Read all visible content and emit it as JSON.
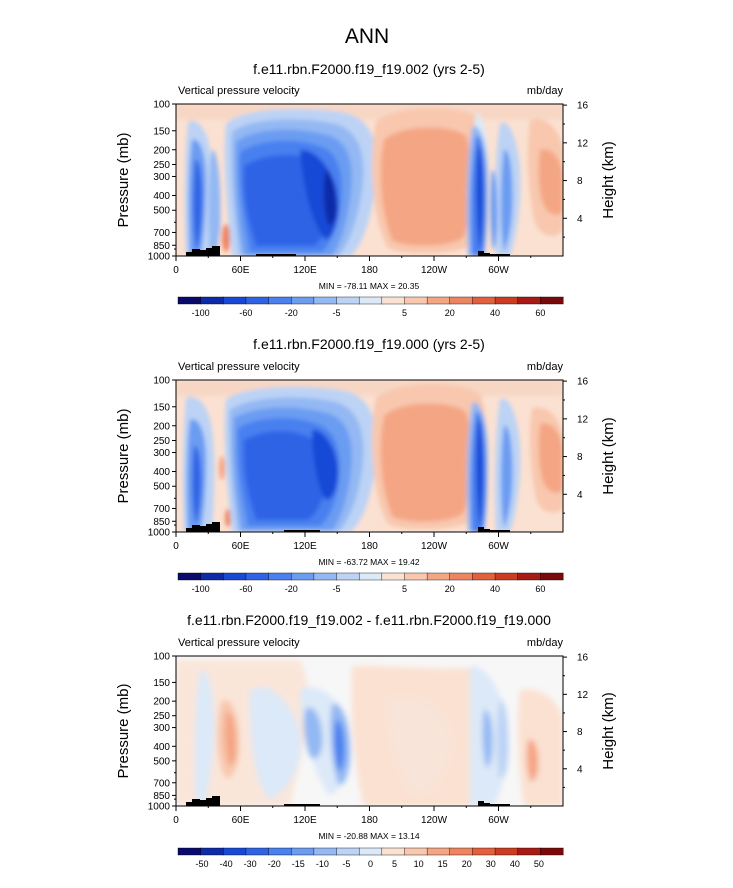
{
  "figure": {
    "title": "ANN"
  },
  "chart_data": [
    {
      "type": "contour",
      "title": "f.e11.rbn.F2000.f19_f19.002 (yrs 2-5)",
      "left_label": "Vertical pressure velocity",
      "units": "mb/day",
      "ylabel": "Pressure (mb)",
      "y2label": "Height (km)",
      "yticks": [
        "100",
        "150",
        "200",
        "250",
        "300",
        "400",
        "500",
        "700",
        "850",
        "1000"
      ],
      "y2ticks": [
        "4",
        "8",
        "12",
        "16"
      ],
      "xticks": [
        "0",
        "60E",
        "120E",
        "180",
        "120W",
        "60W"
      ],
      "stats": "MIN = -78.11  MAX = 20.35",
      "colorbar_labels": [
        "-100",
        "-60",
        "-20",
        "-5",
        "5",
        "20",
        "40",
        "60"
      ]
    },
    {
      "type": "contour",
      "title": "f.e11.rbn.F2000.f19_f19.000 (yrs 2-5)",
      "left_label": "Vertical pressure velocity",
      "units": "mb/day",
      "ylabel": "Pressure (mb)",
      "y2label": "Height (km)",
      "yticks": [
        "100",
        "150",
        "200",
        "250",
        "300",
        "400",
        "500",
        "700",
        "850",
        "1000"
      ],
      "y2ticks": [
        "4",
        "8",
        "12",
        "16"
      ],
      "xticks": [
        "0",
        "60E",
        "120E",
        "180",
        "120W",
        "60W"
      ],
      "stats": "MIN = -63.72  MAX = 19.42",
      "colorbar_labels": [
        "-100",
        "-60",
        "-20",
        "-5",
        "5",
        "20",
        "40",
        "60"
      ]
    },
    {
      "type": "contour",
      "title": "f.e11.rbn.F2000.f19_f19.002 - f.e11.rbn.F2000.f19_f19.000",
      "left_label": "Vertical pressure velocity",
      "units": "mb/day",
      "ylabel": "Pressure (mb)",
      "y2label": "Height (km)",
      "yticks": [
        "100",
        "150",
        "200",
        "250",
        "300",
        "400",
        "500",
        "700",
        "850",
        "1000"
      ],
      "y2ticks": [
        "4",
        "8",
        "12",
        "16"
      ],
      "xticks": [
        "0",
        "60E",
        "120E",
        "180",
        "120W",
        "60W"
      ],
      "stats": "MIN = -20.88  MAX = 13.14",
      "colorbar_labels": [
        "-50",
        "-40",
        "-30",
        "-20",
        "-15",
        "-10",
        "-5",
        "0",
        "5",
        "10",
        "15",
        "20",
        "30",
        "40",
        "50"
      ]
    }
  ],
  "colors": {
    "scale": [
      "#0a0a6e",
      "#0d2aa8",
      "#1848d6",
      "#2f63e6",
      "#4a80f0",
      "#6b9cf2",
      "#93b8f3",
      "#bcd3f5",
      "#dce9f8",
      "#fbe1d2",
      "#f8c7ae",
      "#f4a684",
      "#ee8460",
      "#e3603c",
      "#cc3c22",
      "#a81a14",
      "#7a0a0a"
    ]
  }
}
